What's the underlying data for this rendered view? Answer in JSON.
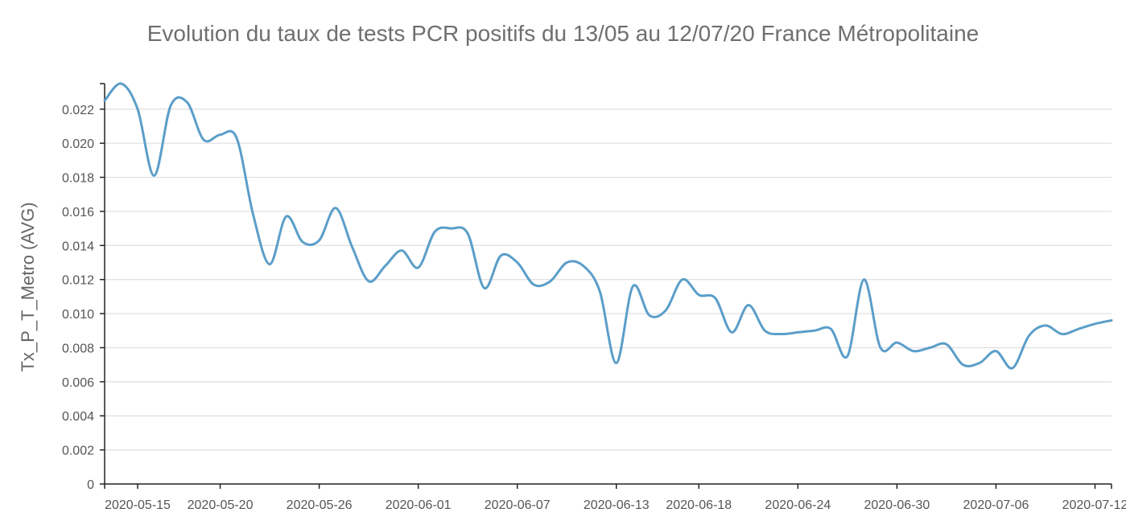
{
  "chart_data": {
    "type": "line",
    "title": "Evolution du taux de tests PCR positifs du 13/05 au 12/07/20 France Métropolitaine",
    "xlabel": "",
    "ylabel": "Tx_P_T_Metro (AVG)",
    "ylim": [
      0,
      0.0235
    ],
    "y_ticks": [
      0,
      0.002,
      0.004,
      0.006,
      0.008,
      0.01,
      0.012,
      0.014,
      0.016,
      0.018,
      0.02,
      0.022
    ],
    "y_tick_labels": [
      "0",
      "0.002",
      "0.004",
      "0.006",
      "0.008",
      "0.010",
      "0.012",
      "0.014",
      "0.016",
      "0.018",
      "0.020",
      "0.022"
    ],
    "x_tick_labels": [
      "2020-05-15",
      "2020-05-20",
      "2020-05-26",
      "2020-06-01",
      "2020-06-07",
      "2020-06-13",
      "2020-06-18",
      "2020-06-24",
      "2020-06-30",
      "2020-07-06",
      "2020-07-12"
    ],
    "grid": true,
    "line_color": "#5b9ec9",
    "series": [
      {
        "x": [
          "2020-05-13",
          "2020-05-14",
          "2020-05-15",
          "2020-05-16",
          "2020-05-17",
          "2020-05-18",
          "2020-05-19",
          "2020-05-20",
          "2020-05-21",
          "2020-05-22",
          "2020-05-23",
          "2020-05-24",
          "2020-05-25",
          "2020-05-26",
          "2020-05-27",
          "2020-05-28",
          "2020-05-29",
          "2020-05-30",
          "2020-05-31",
          "2020-06-01",
          "2020-06-02",
          "2020-06-03",
          "2020-06-04",
          "2020-06-05",
          "2020-06-06",
          "2020-06-07",
          "2020-06-08",
          "2020-06-09",
          "2020-06-10",
          "2020-06-11",
          "2020-06-12",
          "2020-06-13",
          "2020-06-14",
          "2020-06-15",
          "2020-06-16",
          "2020-06-17",
          "2020-06-18",
          "2020-06-19",
          "2020-06-20",
          "2020-06-21",
          "2020-06-22",
          "2020-06-23",
          "2020-06-24",
          "2020-06-25",
          "2020-06-26",
          "2020-06-27",
          "2020-06-28",
          "2020-06-29",
          "2020-06-30",
          "2020-07-01",
          "2020-07-02",
          "2020-07-03",
          "2020-07-04",
          "2020-07-05",
          "2020-07-06",
          "2020-07-07",
          "2020-07-08",
          "2020-07-09",
          "2020-07-10",
          "2020-07-11",
          "2020-07-12",
          "2020-07-13"
        ],
        "values": [
          0.0225,
          0.0235,
          0.022,
          0.0181,
          0.0222,
          0.0224,
          0.0202,
          0.0205,
          0.0203,
          0.0158,
          0.0129,
          0.0157,
          0.0142,
          0.0143,
          0.0162,
          0.0139,
          0.0119,
          0.0128,
          0.0137,
          0.0127,
          0.0148,
          0.015,
          0.0147,
          0.0115,
          0.0134,
          0.013,
          0.0117,
          0.0119,
          0.013,
          0.0128,
          0.0113,
          0.0071,
          0.0116,
          0.0099,
          0.0102,
          0.012,
          0.0111,
          0.0109,
          0.0089,
          0.0105,
          0.009,
          0.0088,
          0.0089,
          0.009,
          0.0091,
          0.0075,
          0.012,
          0.008,
          0.0083,
          0.0078,
          0.008,
          0.0082,
          0.007,
          0.0071,
          0.0078,
          0.0068,
          0.0087,
          0.0093,
          0.0088,
          0.0091,
          0.0094,
          0.0096
        ]
      }
    ]
  }
}
